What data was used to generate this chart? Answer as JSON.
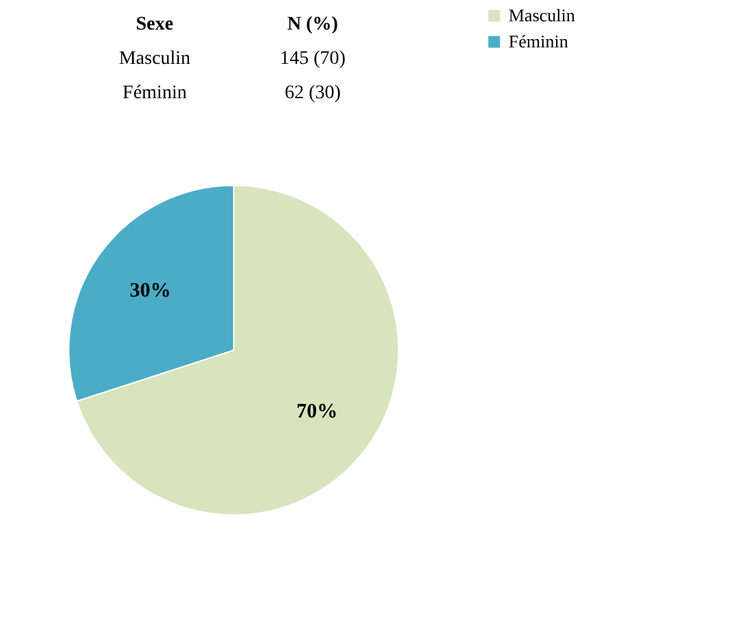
{
  "chart_data": {
    "type": "pie",
    "categories": [
      "Masculin",
      "Féminin"
    ],
    "values": [
      70,
      30
    ],
    "colors": [
      "#d7e4bd",
      "#4bacc6"
    ],
    "value_labels": [
      "70%",
      "30%"
    ],
    "legend": "right",
    "annotations": [
      "Sexe",
      "N (%)",
      "Masculin",
      "145 (70)",
      "Féminin",
      "62 (30)"
    ]
  }
}
